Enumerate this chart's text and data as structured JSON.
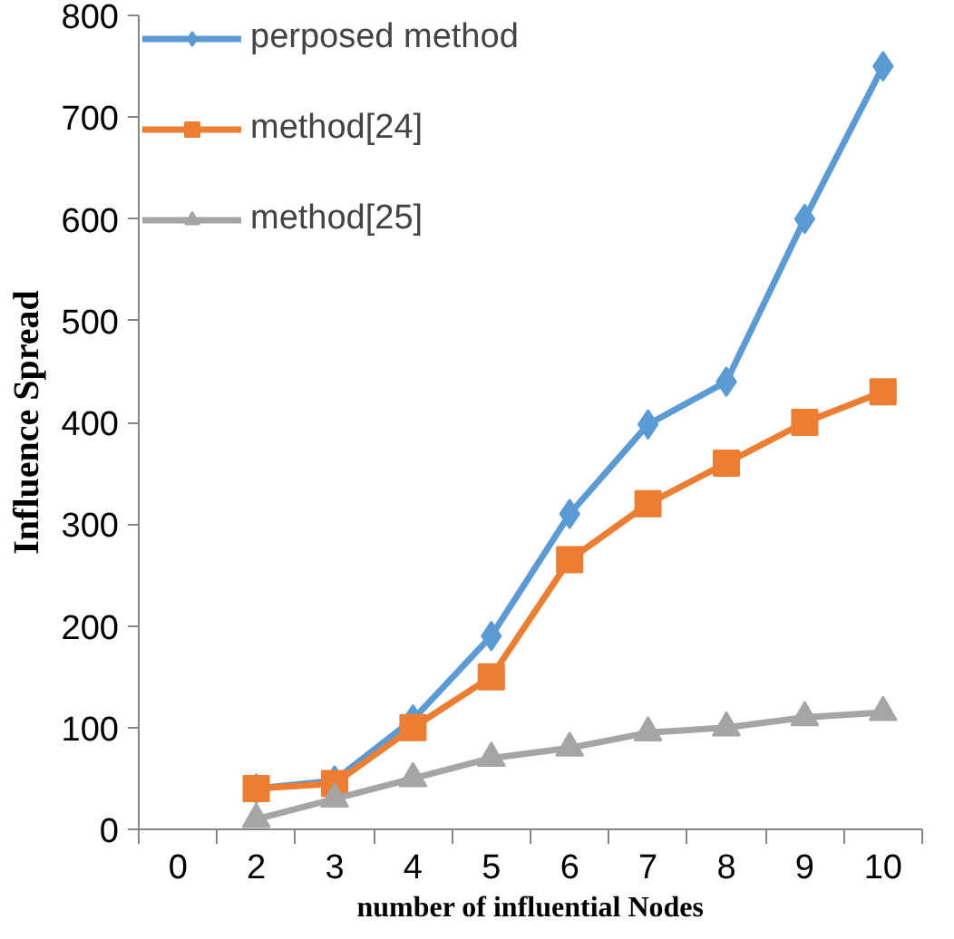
{
  "chart_data": {
    "type": "line",
    "xlabel": "number of influential Nodes",
    "ylabel": "Influence Spread",
    "categories": [
      "0",
      "2",
      "3",
      "4",
      "5",
      "6",
      "7",
      "8",
      "9",
      "10"
    ],
    "ylim": [
      0,
      800
    ],
    "yticks": [
      0,
      100,
      200,
      300,
      400,
      500,
      600,
      700,
      800
    ],
    "grid": false,
    "legend": "top left",
    "series": [
      {
        "name": "perposed method",
        "color": "#5b9bd5",
        "marker": "diamond",
        "values": [
          null,
          40,
          48,
          108,
          190,
          310,
          398,
          440,
          600,
          750
        ]
      },
      {
        "name": "method[24]",
        "color": "#ed7d31",
        "marker": "square",
        "values": [
          null,
          40,
          45,
          100,
          150,
          265,
          320,
          360,
          400,
          430
        ]
      },
      {
        "name": "method[25]",
        "color": "#a5a5a5",
        "marker": "triangle",
        "values": [
          null,
          10,
          30,
          50,
          70,
          80,
          95,
          100,
          110,
          115
        ]
      }
    ]
  }
}
